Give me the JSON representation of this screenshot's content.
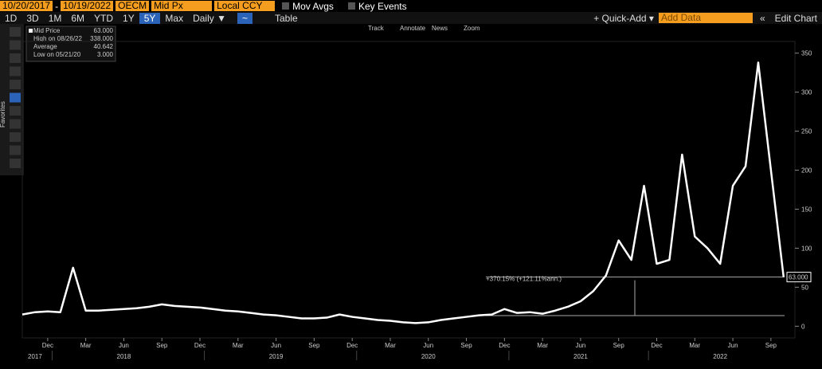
{
  "toolbar": {
    "start_date": "10/20/2017",
    "end_date": "10/19/2022",
    "ticker": "OECM",
    "field": "Mid Px",
    "currency": "Local CCY",
    "mov_avgs": "Mov Avgs",
    "key_events": "Key Events",
    "periods": [
      "1D",
      "3D",
      "1M",
      "6M",
      "YTD",
      "1Y",
      "5Y",
      "Max"
    ],
    "frequency": "Daily ▼",
    "table": "Table",
    "quick_add": "+ Quick-Add ▾",
    "add_data": "Add Data",
    "edit_chart": "Edit Chart",
    "favorites": "Favorites"
  },
  "chart_tools": [
    "Track",
    "Annotate",
    "News",
    "Zoom"
  ],
  "legend": {
    "rows": [
      {
        "label": "Mid Price",
        "value": "63.000"
      },
      {
        "label": "High on 08/26/22",
        "value": "338.000"
      },
      {
        "label": "Average",
        "value": "40.642"
      },
      {
        "label": "Low on 05/21/20",
        "value": "3.000"
      }
    ]
  },
  "annotation": "+370.15% (+121.11%ann.)",
  "last_label": "63.000",
  "chart_data": {
    "type": "line",
    "x": [
      "2017-10",
      "2017-11",
      "2017-12",
      "2018-01",
      "2018-02",
      "2018-03",
      "2018-04",
      "2018-05",
      "2018-06",
      "2018-07",
      "2018-08",
      "2018-09",
      "2018-10",
      "2018-11",
      "2018-12",
      "2019-01",
      "2019-02",
      "2019-03",
      "2019-04",
      "2019-05",
      "2019-06",
      "2019-07",
      "2019-08",
      "2019-09",
      "2019-10",
      "2019-11",
      "2019-12",
      "2020-01",
      "2020-02",
      "2020-03",
      "2020-04",
      "2020-05",
      "2020-06",
      "2020-07",
      "2020-08",
      "2020-09",
      "2020-10",
      "2020-11",
      "2020-12",
      "2021-01",
      "2021-02",
      "2021-03",
      "2021-04",
      "2021-05",
      "2021-06",
      "2021-07",
      "2021-08",
      "2021-09",
      "2021-10",
      "2021-11",
      "2021-12",
      "2022-01",
      "2022-02",
      "2022-03",
      "2022-04",
      "2022-05",
      "2022-06",
      "2022-07",
      "2022-08",
      "2022-09",
      "2022-10"
    ],
    "series": [
      {
        "name": "Mid Price",
        "color": "#ffffff",
        "values": [
          15,
          18,
          19,
          18,
          75,
          20,
          20,
          21,
          22,
          23,
          25,
          28,
          26,
          25,
          24,
          22,
          20,
          19,
          17,
          15,
          14,
          12,
          10,
          10,
          11,
          15,
          12,
          10,
          8,
          7,
          5,
          4,
          5,
          8,
          10,
          12,
          14,
          15,
          22,
          17,
          18,
          16,
          20,
          25,
          32,
          45,
          65,
          110,
          85,
          180,
          80,
          85,
          220,
          115,
          100,
          80,
          180,
          205,
          338,
          200,
          63
        ]
      }
    ],
    "ylim": [
      -15,
      365
    ],
    "yticks": [
      0,
      50,
      100,
      150,
      200,
      250,
      300,
      350
    ],
    "xticks": [
      {
        "value": "2017-12",
        "label": "Dec"
      },
      {
        "value": "2018-03",
        "label": "Mar"
      },
      {
        "value": "2018-06",
        "label": "Jun"
      },
      {
        "value": "2018-09",
        "label": "Sep"
      },
      {
        "value": "2018-12",
        "label": "Dec"
      },
      {
        "value": "2019-03",
        "label": "Mar"
      },
      {
        "value": "2019-06",
        "label": "Jun"
      },
      {
        "value": "2019-09",
        "label": "Sep"
      },
      {
        "value": "2019-12",
        "label": "Dec"
      },
      {
        "value": "2020-03",
        "label": "Mar"
      },
      {
        "value": "2020-06",
        "label": "Jun"
      },
      {
        "value": "2020-09",
        "label": "Sep"
      },
      {
        "value": "2020-12",
        "label": "Dec"
      },
      {
        "value": "2021-03",
        "label": "Mar"
      },
      {
        "value": "2021-06",
        "label": "Jun"
      },
      {
        "value": "2021-09",
        "label": "Sep"
      },
      {
        "value": "2021-12",
        "label": "Dec"
      },
      {
        "value": "2022-03",
        "label": "Mar"
      },
      {
        "value": "2022-06",
        "label": "Jun"
      },
      {
        "value": "2022-09",
        "label": "Sep"
      }
    ],
    "years": [
      {
        "value": "2017-11",
        "label": "2017"
      },
      {
        "value": "2018-06",
        "label": "2018"
      },
      {
        "value": "2019-06",
        "label": "2019"
      },
      {
        "value": "2020-06",
        "label": "2020"
      },
      {
        "value": "2021-06",
        "label": "2021"
      },
      {
        "value": "2022-05",
        "label": "2022"
      }
    ]
  }
}
